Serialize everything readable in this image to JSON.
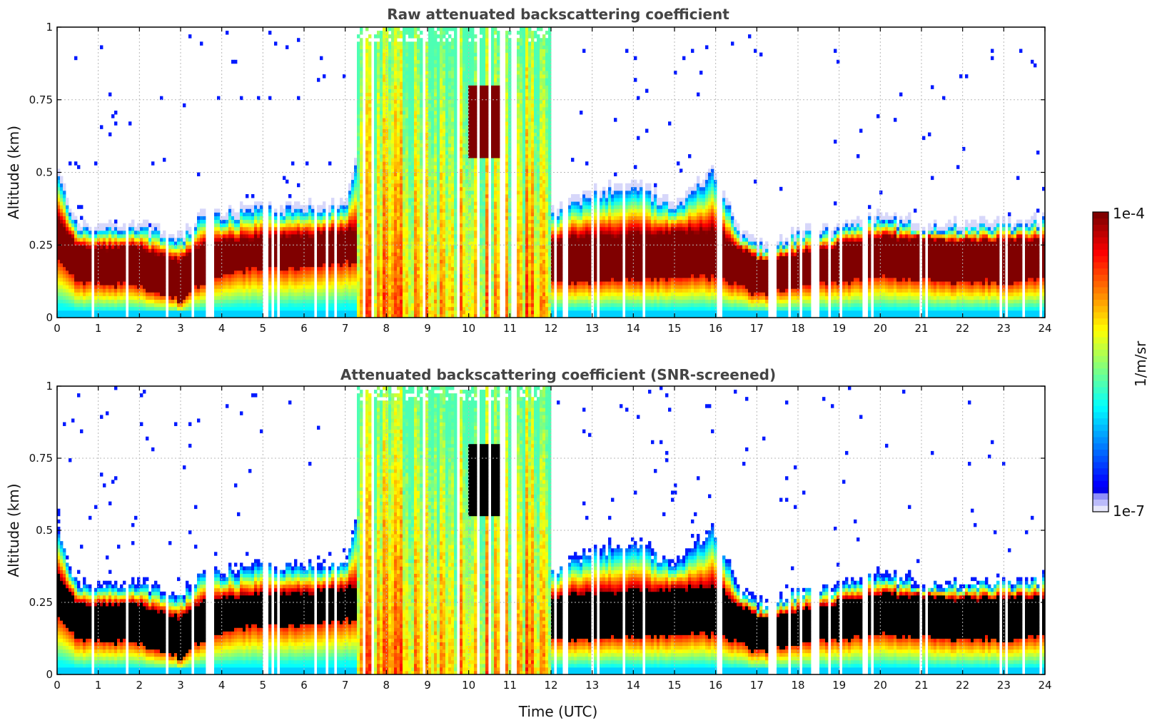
{
  "chart_data": [
    {
      "type": "heatmap",
      "title": "Raw attenuated backscattering coefficient",
      "xlabel": "",
      "ylabel": "Altitude (km)",
      "xlim": [
        0,
        24
      ],
      "ylim": [
        0,
        1
      ],
      "xticks": [
        "0",
        "1",
        "2",
        "3",
        "4",
        "5",
        "6",
        "7",
        "8",
        "9",
        "10",
        "11",
        "12",
        "13",
        "14",
        "15",
        "16",
        "17",
        "18",
        "19",
        "20",
        "21",
        "22",
        "23",
        "24"
      ],
      "yticks": [
        "0",
        "0.25",
        "0.5",
        "0.75",
        "1"
      ],
      "grid": true,
      "screened": false,
      "features": {
        "layer_top_km": [
          [
            0,
            0.5
          ],
          [
            0.5,
            0.3
          ],
          [
            2,
            0.31
          ],
          [
            3,
            0.26
          ],
          [
            3.5,
            0.34
          ],
          [
            4.5,
            0.36
          ],
          [
            5,
            0.37
          ],
          [
            6,
            0.37
          ],
          [
            7,
            0.38
          ],
          [
            7.3,
            0.55
          ],
          [
            12,
            0.35
          ],
          [
            13,
            0.42
          ],
          [
            14,
            0.45
          ],
          [
            15,
            0.38
          ],
          [
            16,
            0.5
          ],
          [
            16.5,
            0.3
          ],
          [
            17,
            0.24
          ],
          [
            18,
            0.28
          ],
          [
            19,
            0.3
          ],
          [
            20,
            0.34
          ],
          [
            21,
            0.31
          ],
          [
            22,
            0.31
          ],
          [
            23,
            0.31
          ],
          [
            24,
            0.33
          ]
        ],
        "layer_core_top_km": [
          [
            0,
            0.35
          ],
          [
            0.5,
            0.24
          ],
          [
            2,
            0.24
          ],
          [
            3,
            0.19
          ],
          [
            3.5,
            0.25
          ],
          [
            4.5,
            0.27
          ],
          [
            5,
            0.28
          ],
          [
            6,
            0.28
          ],
          [
            7,
            0.3
          ],
          [
            12,
            0.27
          ],
          [
            16,
            0.3
          ],
          [
            17,
            0.2
          ],
          [
            18,
            0.22
          ],
          [
            20,
            0.28
          ],
          [
            22,
            0.26
          ],
          [
            24,
            0.27
          ]
        ],
        "layer_core_bottom_km": [
          [
            0,
            0.2
          ],
          [
            0.5,
            0.12
          ],
          [
            2,
            0.11
          ],
          [
            3,
            0.06
          ],
          [
            3.5,
            0.12
          ],
          [
            4.5,
            0.16
          ],
          [
            5,
            0.17
          ],
          [
            6,
            0.17
          ],
          [
            7,
            0.19
          ],
          [
            12,
            0.12
          ],
          [
            16,
            0.14
          ],
          [
            17,
            0.08
          ],
          [
            18,
            0.1
          ],
          [
            20,
            0.14
          ],
          [
            22,
            0.12
          ],
          [
            24,
            0.13
          ]
        ],
        "fog_precip_periods_utc": [
          [
            7.3,
            12.0
          ]
        ],
        "elevated_cloud_periods_utc": [
          [
            10.0,
            10.9
          ]
        ]
      }
    },
    {
      "type": "heatmap",
      "title": "Attenuated backscattering coefficient (SNR-screened)",
      "xlabel": "Time (UTC)",
      "ylabel": "Altitude (km)",
      "xlim": [
        0,
        24
      ],
      "ylim": [
        0,
        1
      ],
      "xticks": [
        "0",
        "1",
        "2",
        "3",
        "4",
        "5",
        "6",
        "7",
        "8",
        "9",
        "10",
        "11",
        "12",
        "13",
        "14",
        "15",
        "16",
        "17",
        "18",
        "19",
        "20",
        "21",
        "22",
        "23",
        "24"
      ],
      "yticks": [
        "0",
        "0.25",
        "0.5",
        "0.75",
        "1"
      ],
      "grid": true,
      "screened": true,
      "saturated_color": "#000000"
    }
  ],
  "colorbar": {
    "label": "1/m/sr",
    "max_label": "1e-4",
    "min_label": "1e-7",
    "range": [
      1e-07,
      0.0001
    ],
    "scale": "log",
    "colormap": "jet"
  }
}
